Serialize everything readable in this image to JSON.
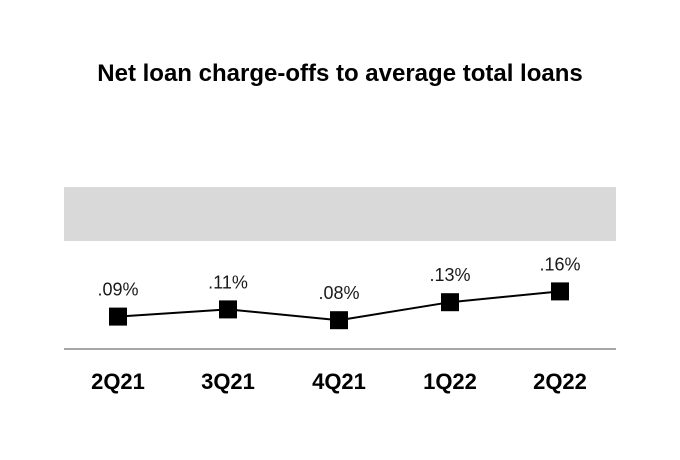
{
  "chart_data": {
    "type": "line",
    "title": "Net loan charge-offs to average total loans",
    "categories": [
      "2Q21",
      "3Q21",
      "4Q21",
      "1Q22",
      "2Q22"
    ],
    "series": [
      {
        "values": [
          0.09,
          0.11,
          0.08,
          0.13,
          0.16
        ],
        "labels": [
          ".09%",
          ".11%",
          ".08%",
          ".13%",
          ".16%"
        ]
      }
    ],
    "ylim": [
      0,
      0.45
    ],
    "band_range": [
      0.3,
      0.45
    ],
    "colors": {
      "line": "#000000",
      "marker": "#000000",
      "band": "#d9d9d9",
      "axis": "#a6a6a6"
    }
  }
}
